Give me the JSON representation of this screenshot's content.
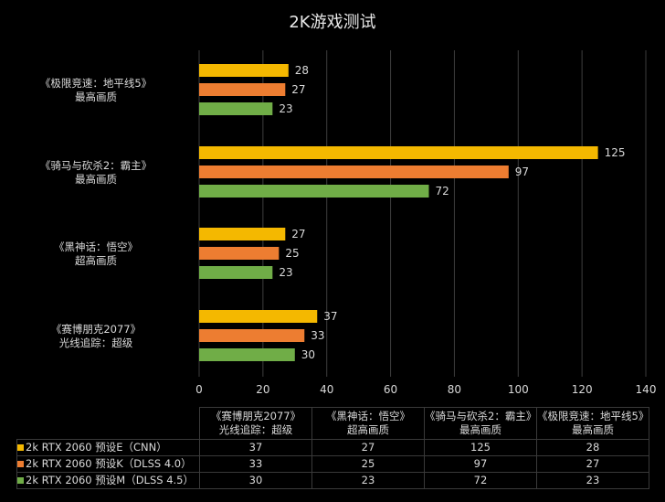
{
  "chart_data": {
    "type": "bar",
    "orientation": "horizontal",
    "title": "2K游戏测试",
    "categories": [
      [
        "《赛博朋克2077》",
        "光线追踪：超级"
      ],
      [
        "《黑神话：悟空》",
        "超高画质"
      ],
      [
        "《骑马与砍杀2：霸主》",
        "最高画质"
      ],
      [
        "《极限竞速：地平线5》",
        "最高画质"
      ]
    ],
    "series": [
      {
        "name": "2k RTX 2060 预设E（CNN）",
        "color": "#f4b800",
        "values": [
          37,
          27,
          125,
          28
        ]
      },
      {
        "name": "2k RTX 2060 预设K（DLSS 4.0）",
        "color": "#ed7d31",
        "values": [
          33,
          25,
          97,
          27
        ]
      },
      {
        "name": "2k RTX 2060 预设M（DLSS 4.5）",
        "color": "#70ad47",
        "values": [
          30,
          23,
          72,
          23
        ]
      }
    ],
    "xlim": [
      0,
      140
    ],
    "xticks": [
      "0",
      "20",
      "40",
      "60",
      "80",
      "100",
      "120",
      "140"
    ],
    "grid": true,
    "data_labels": true,
    "legend": "data-table-below"
  }
}
